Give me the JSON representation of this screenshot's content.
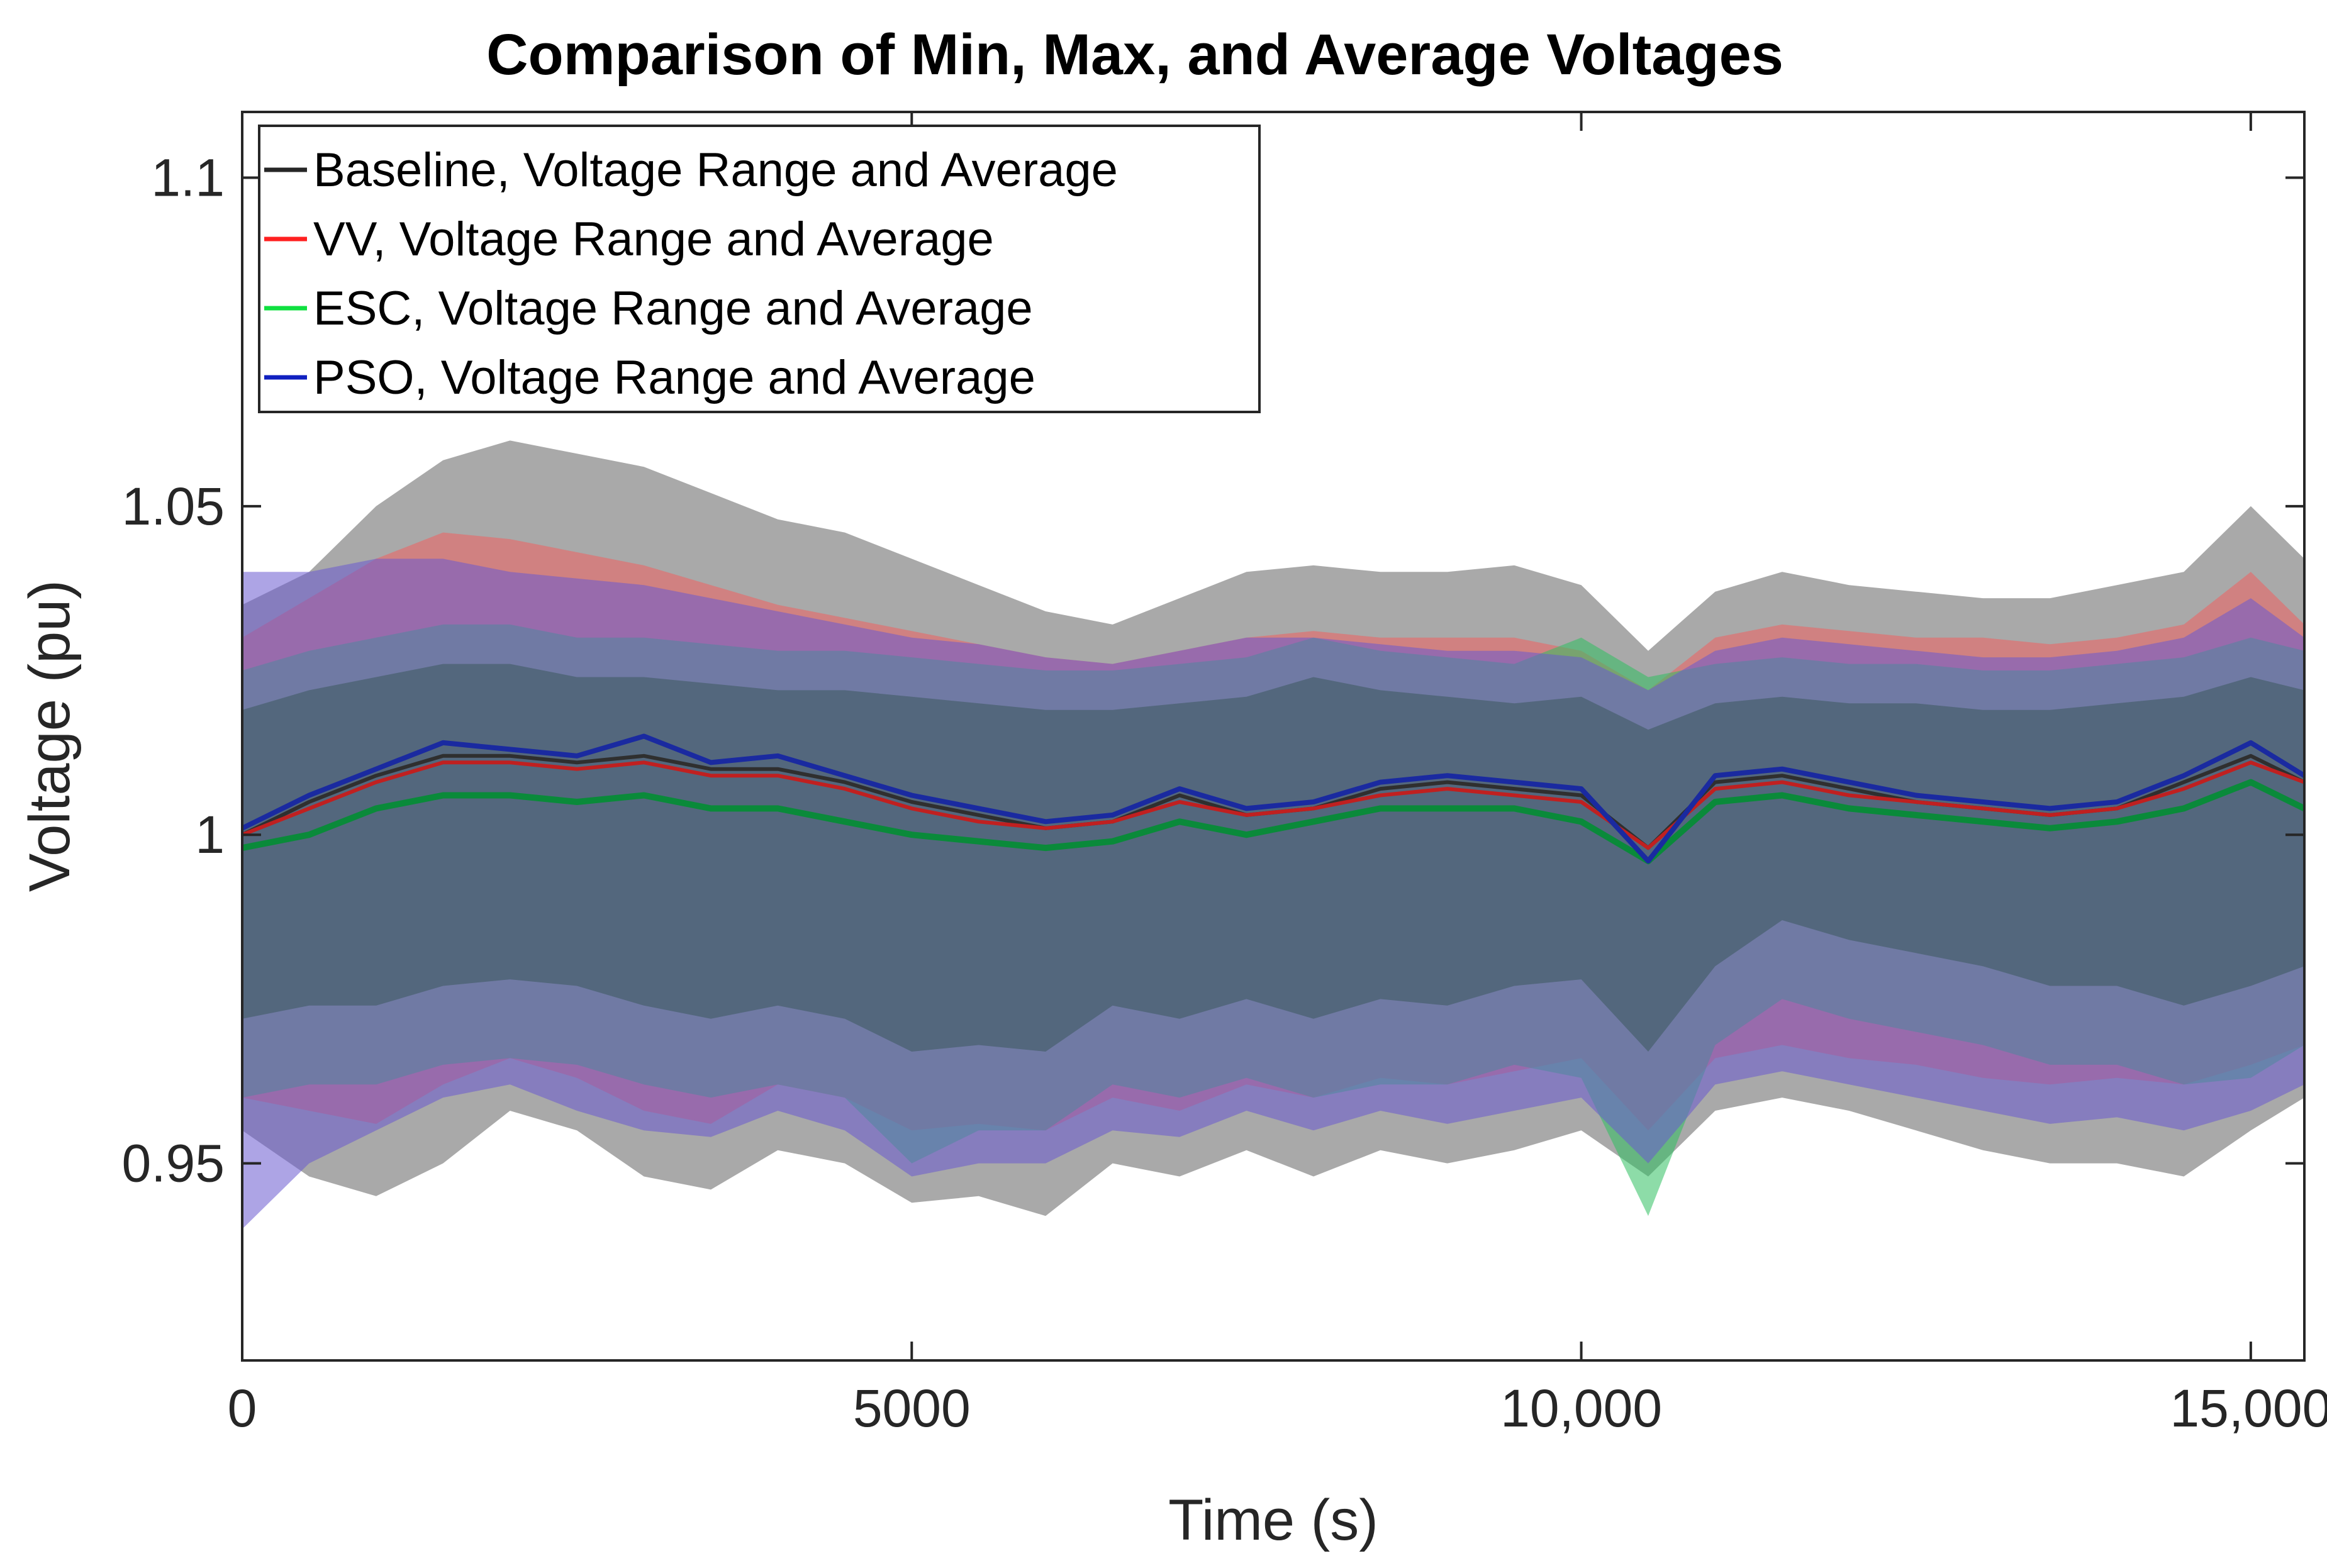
{
  "chart_data": {
    "type": "area",
    "title": "Comparison of Min, Max, and Average Voltages",
    "xlabel": "Time (s)",
    "ylabel": "Voltage (pu)",
    "xlim": [
      0,
      15400
    ],
    "ylim": [
      0.92,
      1.11
    ],
    "xticks": [
      0,
      5000,
      10000,
      15000
    ],
    "xtick_labels": [
      "0",
      "5000",
      "10,000",
      "15,000"
    ],
    "yticks": [
      0.95,
      1.0,
      1.05,
      1.1
    ],
    "ytick_labels": [
      "0.95",
      "1",
      "1.05",
      "1.1"
    ],
    "legend_position": "top-left",
    "x": [
      0,
      500,
      1000,
      1500,
      2000,
      2500,
      3000,
      3500,
      4000,
      4500,
      5000,
      5500,
      6000,
      6500,
      7000,
      7500,
      8000,
      8500,
      9000,
      9500,
      10000,
      10500,
      11000,
      11500,
      12000,
      12500,
      13000,
      13500,
      14000,
      14500,
      15000,
      15400
    ],
    "series": [
      {
        "name": "Baseline, Voltage Range and Average",
        "color": "#262626",
        "band_color": "#8c8c8c",
        "max": [
          1.035,
          1.04,
          1.05,
          1.057,
          1.06,
          1.058,
          1.056,
          1.052,
          1.048,
          1.046,
          1.042,
          1.038,
          1.034,
          1.032,
          1.036,
          1.04,
          1.041,
          1.04,
          1.04,
          1.041,
          1.038,
          1.028,
          1.037,
          1.04,
          1.038,
          1.037,
          1.036,
          1.036,
          1.038,
          1.04,
          1.05,
          1.042
        ],
        "min": [
          0.955,
          0.948,
          0.945,
          0.95,
          0.958,
          0.955,
          0.948,
          0.946,
          0.952,
          0.95,
          0.944,
          0.945,
          0.942,
          0.95,
          0.948,
          0.952,
          0.948,
          0.952,
          0.95,
          0.952,
          0.955,
          0.948,
          0.958,
          0.96,
          0.958,
          0.955,
          0.952,
          0.95,
          0.95,
          0.948,
          0.955,
          0.96
        ],
        "avg": [
          1.0,
          1.005,
          1.009,
          1.012,
          1.012,
          1.011,
          1.012,
          1.01,
          1.01,
          1.008,
          1.005,
          1.003,
          1.001,
          1.002,
          1.006,
          1.003,
          1.004,
          1.007,
          1.008,
          1.007,
          1.006,
          0.998,
          1.008,
          1.009,
          1.007,
          1.005,
          1.004,
          1.003,
          1.004,
          1.008,
          1.012,
          1.008
        ]
      },
      {
        "name": "VV, Voltage Range and Average",
        "color": "#ff2020",
        "band_color": "#f06060",
        "max": [
          1.03,
          1.036,
          1.042,
          1.046,
          1.045,
          1.043,
          1.041,
          1.038,
          1.035,
          1.033,
          1.031,
          1.029,
          1.027,
          1.026,
          1.028,
          1.03,
          1.031,
          1.03,
          1.03,
          1.03,
          1.028,
          1.022,
          1.03,
          1.032,
          1.031,
          1.03,
          1.03,
          1.029,
          1.03,
          1.032,
          1.04,
          1.032
        ],
        "min": [
          0.96,
          0.958,
          0.956,
          0.962,
          0.966,
          0.963,
          0.958,
          0.956,
          0.962,
          0.96,
          0.955,
          0.956,
          0.955,
          0.96,
          0.958,
          0.962,
          0.96,
          0.963,
          0.962,
          0.964,
          0.966,
          0.955,
          0.966,
          0.968,
          0.966,
          0.965,
          0.963,
          0.962,
          0.963,
          0.962,
          0.965,
          0.968
        ],
        "avg": [
          1.0,
          1.004,
          1.008,
          1.011,
          1.011,
          1.01,
          1.011,
          1.009,
          1.009,
          1.007,
          1.004,
          1.002,
          1.001,
          1.002,
          1.005,
          1.003,
          1.004,
          1.006,
          1.007,
          1.006,
          1.005,
          0.998,
          1.007,
          1.008,
          1.006,
          1.005,
          1.004,
          1.003,
          1.004,
          1.007,
          1.011,
          1.008
        ]
      },
      {
        "name": "ESC, Voltage Range and Average",
        "color": "#10e040",
        "band_color": "#30c060",
        "max": [
          1.025,
          1.028,
          1.03,
          1.032,
          1.032,
          1.03,
          1.03,
          1.029,
          1.028,
          1.028,
          1.027,
          1.026,
          1.025,
          1.025,
          1.026,
          1.027,
          1.03,
          1.028,
          1.027,
          1.026,
          1.03,
          1.024,
          1.026,
          1.027,
          1.026,
          1.026,
          1.025,
          1.025,
          1.026,
          1.027,
          1.03,
          1.028
        ],
        "min": [
          0.96,
          0.962,
          0.962,
          0.965,
          0.966,
          0.965,
          0.962,
          0.96,
          0.962,
          0.96,
          0.95,
          0.955,
          0.955,
          0.962,
          0.96,
          0.963,
          0.96,
          0.962,
          0.962,
          0.965,
          0.963,
          0.942,
          0.968,
          0.975,
          0.972,
          0.97,
          0.968,
          0.965,
          0.965,
          0.962,
          0.963,
          0.968
        ],
        "avg": [
          0.998,
          1.0,
          1.004,
          1.006,
          1.006,
          1.005,
          1.006,
          1.004,
          1.004,
          1.002,
          1.0,
          0.999,
          0.998,
          0.999,
          1.002,
          1.0,
          1.002,
          1.004,
          1.004,
          1.004,
          1.002,
          0.996,
          1.005,
          1.006,
          1.004,
          1.003,
          1.002,
          1.001,
          1.002,
          1.004,
          1.008,
          1.004
        ]
      },
      {
        "name": "PSO, Voltage Range and Average",
        "color": "#1020c0",
        "band_color": "#6a5ad0",
        "max": [
          1.04,
          1.04,
          1.042,
          1.042,
          1.04,
          1.039,
          1.038,
          1.036,
          1.034,
          1.032,
          1.03,
          1.029,
          1.027,
          1.026,
          1.028,
          1.03,
          1.03,
          1.029,
          1.028,
          1.028,
          1.027,
          1.022,
          1.028,
          1.03,
          1.029,
          1.028,
          1.027,
          1.027,
          1.028,
          1.03,
          1.036,
          1.03
        ],
        "min": [
          0.94,
          0.95,
          0.955,
          0.96,
          0.962,
          0.958,
          0.955,
          0.954,
          0.958,
          0.955,
          0.948,
          0.95,
          0.95,
          0.955,
          0.954,
          0.958,
          0.955,
          0.958,
          0.956,
          0.958,
          0.96,
          0.95,
          0.962,
          0.964,
          0.962,
          0.96,
          0.958,
          0.956,
          0.957,
          0.955,
          0.958,
          0.962
        ],
        "avg": [
          1.001,
          1.006,
          1.01,
          1.014,
          1.013,
          1.012,
          1.015,
          1.011,
          1.012,
          1.009,
          1.006,
          1.004,
          1.002,
          1.003,
          1.007,
          1.004,
          1.005,
          1.008,
          1.009,
          1.008,
          1.007,
          0.996,
          1.009,
          1.01,
          1.008,
          1.006,
          1.005,
          1.004,
          1.005,
          1.009,
          1.014,
          1.009
        ]
      }
    ]
  }
}
